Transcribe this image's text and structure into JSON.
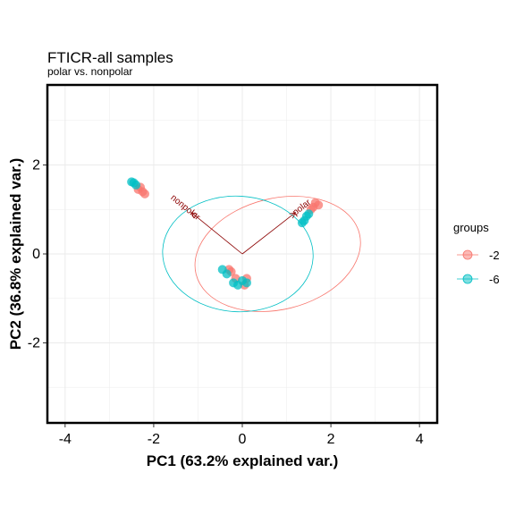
{
  "chart_data": {
    "type": "scatter",
    "title": "FTICR-all samples",
    "subtitle": "polar vs. nonpolar",
    "xlabel": "PC1 (63.2% explained var.)",
    "ylabel": "PC2 (36.8% explained var.)",
    "xlim": [
      -4.4,
      4.4
    ],
    "ylim": [
      -3.8,
      3.8
    ],
    "xticks": [
      -4,
      -2,
      0,
      2,
      4
    ],
    "yticks": [
      -2,
      0,
      2
    ],
    "x_tick_labels": [
      "-4",
      "-2",
      "0",
      "2",
      "4"
    ],
    "y_tick_labels": [
      "-2",
      "0",
      "2"
    ],
    "grid": true,
    "legend": {
      "title": "groups",
      "position": "right",
      "entries": [
        "-2",
        "-6"
      ]
    },
    "series": [
      {
        "name": "-2",
        "color": "#F8766D",
        "points": [
          {
            "x": -2.35,
            "y": 1.45
          },
          {
            "x": -2.25,
            "y": 1.4
          },
          {
            "x": -2.2,
            "y": 1.35
          },
          {
            "x": -2.3,
            "y": 1.5
          },
          {
            "x": 1.65,
            "y": 1.15
          },
          {
            "x": 1.72,
            "y": 1.1
          },
          {
            "x": 1.6,
            "y": 1.05
          },
          {
            "x": 1.55,
            "y": 1.0
          },
          {
            "x": 0.1,
            "y": -0.55
          },
          {
            "x": 0.05,
            "y": -0.7
          },
          {
            "x": -0.25,
            "y": -0.4
          },
          {
            "x": -0.15,
            "y": -0.55
          },
          {
            "x": -0.3,
            "y": -0.35
          }
        ]
      },
      {
        "name": "-6",
        "color": "#00BFC4",
        "points": [
          {
            "x": -2.45,
            "y": 1.6
          },
          {
            "x": -2.4,
            "y": 1.55
          },
          {
            "x": -2.5,
            "y": 1.62
          },
          {
            "x": 1.35,
            "y": 0.7
          },
          {
            "x": 1.4,
            "y": 0.75
          },
          {
            "x": 1.45,
            "y": 0.85
          },
          {
            "x": 1.5,
            "y": 0.9
          },
          {
            "x": -0.45,
            "y": -0.35
          },
          {
            "x": -0.35,
            "y": -0.45
          },
          {
            "x": -0.2,
            "y": -0.65
          },
          {
            "x": -0.1,
            "y": -0.7
          },
          {
            "x": 0.0,
            "y": -0.6
          },
          {
            "x": 0.1,
            "y": -0.65
          }
        ]
      }
    ],
    "ellipses": [
      {
        "group": "-2",
        "color": "#F8766D",
        "cx": 0.8,
        "cy": 0.0,
        "rx": 1.9,
        "ry": 1.25,
        "angle_deg": -14
      },
      {
        "group": "-6",
        "color": "#00BFC4",
        "cx": -0.1,
        "cy": 0.0,
        "rx": 1.7,
        "ry": 1.3,
        "angle_deg": 3
      }
    ],
    "loadings": [
      {
        "label": "nonpolar",
        "x": -1.15,
        "y": 0.93,
        "color": "#8B0000"
      },
      {
        "label": "polar",
        "x": 1.2,
        "y": 0.93,
        "color": "#8B0000"
      }
    ]
  }
}
